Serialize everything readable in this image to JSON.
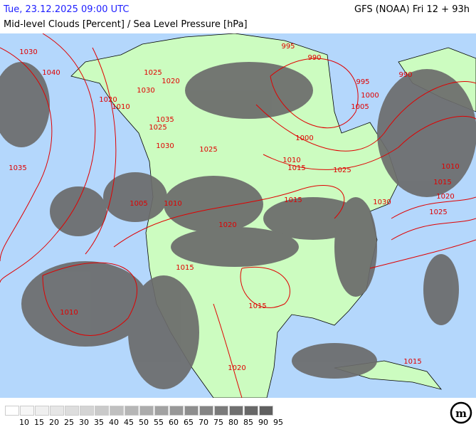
{
  "header": {
    "datetime": "Tue, 23.12.2025 09:00 UTC",
    "model": "GFS (NOAA) Fri 12 + 93h",
    "parameter": "Mid-level Clouds [Percent] / Sea Level Pressure [hPa]"
  },
  "colors": {
    "ocean": "#b4d7fc",
    "land": "#ccfcc0",
    "isobar": "#e00000",
    "cloud": "#6b6b6b",
    "borders": "#000000"
  },
  "legend": {
    "labels": [
      "10",
      "15",
      "20",
      "25",
      "30",
      "35",
      "40",
      "45",
      "50",
      "55",
      "60",
      "65",
      "70",
      "75",
      "80",
      "85",
      "90",
      "95"
    ],
    "colors": [
      "#ffffff",
      "#f6f6f6",
      "#efefef",
      "#e6e6e6",
      "#dddddd",
      "#d4d4d4",
      "#cacaca",
      "#c0c0c0",
      "#b6b6b6",
      "#acacac",
      "#a2a2a2",
      "#989898",
      "#8e8e8e",
      "#848484",
      "#7a7a7a",
      "#707070",
      "#686868",
      "#606060"
    ]
  },
  "isobar_labels": [
    {
      "text": "1030",
      "p": [
        40,
        72
      ]
    },
    {
      "text": "1040",
      "p": [
        72,
        101
      ]
    },
    {
      "text": "1025",
      "p": [
        215,
        101
      ]
    },
    {
      "text": "1020",
      "p": [
        240,
        113
      ]
    },
    {
      "text": "1030",
      "p": [
        205,
        126
      ]
    },
    {
      "text": "1020",
      "p": [
        152,
        139
      ]
    },
    {
      "text": "1010",
      "p": [
        170,
        149
      ]
    },
    {
      "text": "1035",
      "p": [
        232,
        167
      ]
    },
    {
      "text": "1025",
      "p": [
        222,
        178
      ]
    },
    {
      "text": "1030",
      "p": [
        232,
        204
      ]
    },
    {
      "text": "1025",
      "p": [
        293,
        209
      ]
    },
    {
      "text": "1035",
      "p": [
        25,
        235
      ]
    },
    {
      "text": "1005",
      "p": [
        195,
        285
      ]
    },
    {
      "text": "1010",
      "p": [
        243,
        285
      ]
    },
    {
      "text": "1015",
      "p": [
        412,
        280
      ]
    },
    {
      "text": "1020",
      "p": [
        320,
        315
      ]
    },
    {
      "text": "1015",
      "p": [
        260,
        375
      ]
    },
    {
      "text": "1010",
      "p": [
        97,
        438
      ]
    },
    {
      "text": "1015",
      "p": [
        362,
        429
      ]
    },
    {
      "text": "1020",
      "p": [
        333,
        516
      ]
    },
    {
      "text": "995",
      "p": [
        405,
        64
      ]
    },
    {
      "text": "990",
      "p": [
        442,
        80
      ]
    },
    {
      "text": "995",
      "p": [
        510,
        114
      ]
    },
    {
      "text": "990",
      "p": [
        570,
        104
      ]
    },
    {
      "text": "1000",
      "p": [
        520,
        133
      ]
    },
    {
      "text": "1005",
      "p": [
        506,
        149
      ]
    },
    {
      "text": "1000",
      "p": [
        428,
        193
      ]
    },
    {
      "text": "1010",
      "p": [
        410,
        224
      ]
    },
    {
      "text": "1015",
      "p": [
        417,
        235
      ]
    },
    {
      "text": "1025",
      "p": [
        481,
        238
      ]
    },
    {
      "text": "1030",
      "p": [
        537,
        283
      ]
    },
    {
      "text": "1010",
      "p": [
        633,
        233
      ]
    },
    {
      "text": "1015",
      "p": [
        622,
        255
      ]
    },
    {
      "text": "1020",
      "p": [
        626,
        275
      ]
    },
    {
      "text": "1025",
      "p": [
        616,
        297
      ]
    },
    {
      "text": "1015",
      "p": [
        580,
        507
      ]
    }
  ],
  "logo": "m"
}
